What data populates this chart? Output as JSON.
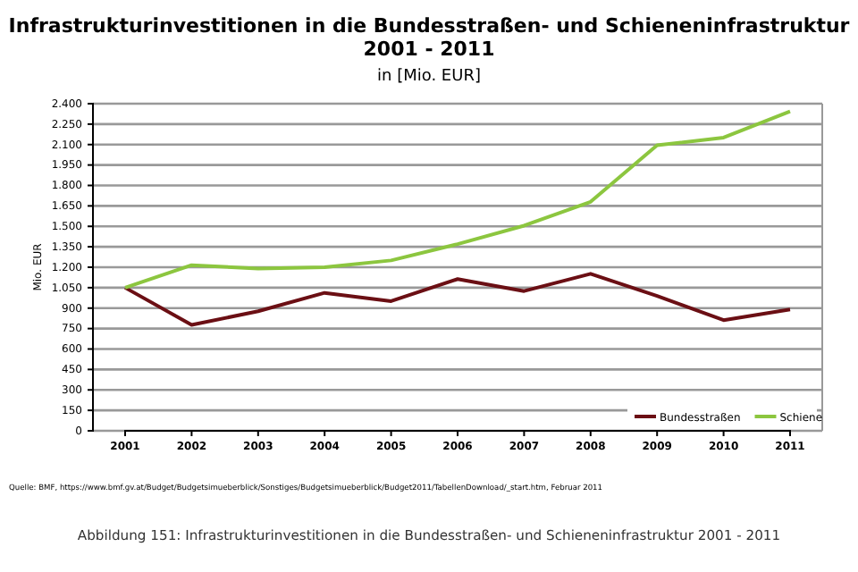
{
  "chart_data": {
    "type": "line",
    "title": "Infrastrukturinvestitionen in die Bundesstraßen- und Schieneninfrastruktur 2001 - 2011",
    "subtitle": "in [Mio. EUR]",
    "ylabel": "Mio. EUR",
    "categories": [
      "2001",
      "2002",
      "2003",
      "2004",
      "2005",
      "2006",
      "2007",
      "2008",
      "2009",
      "2010",
      "2011"
    ],
    "series": [
      {
        "name": "Bundesstraßen",
        "color": "#6b0f14",
        "values": [
          1050,
          777,
          877,
          1012,
          951,
          1113,
          1025,
          1152,
          990,
          812,
          890
        ]
      },
      {
        "name": "Schiene",
        "color": "#8cc63f",
        "values": [
          1050,
          1215,
          1190,
          1200,
          1250,
          1370,
          1505,
          1680,
          2095,
          2151,
          2343
        ]
      }
    ],
    "ylim": [
      0,
      2400
    ],
    "yticks": [
      0,
      {
        "value": 150,
        "label": "150"
      },
      {
        "value": 300,
        "label": "300"
      },
      {
        "value": 450,
        "label": "450"
      },
      {
        "value": 600,
        "label": "600"
      },
      {
        "value": 750,
        "label": "750"
      },
      {
        "value": 900,
        "label": "900"
      },
      {
        "value": 1050,
        "label": "1.050"
      },
      {
        "value": 1200,
        "label": "1.200"
      },
      {
        "value": 1350,
        "label": "1.350"
      },
      {
        "value": 1500,
        "label": "1.500"
      },
      {
        "value": 1650,
        "label": "1.650"
      },
      {
        "value": 1800,
        "label": "1.800"
      },
      {
        "value": 1950,
        "label": "1.950"
      },
      {
        "value": 2100,
        "label": "2.100"
      },
      {
        "value": 2250,
        "label": "2.250"
      },
      {
        "value": 2400,
        "label": "2.400"
      }
    ],
    "grid": "y",
    "legend": "bottom right",
    "marker": "none",
    "line_style": "solid",
    "annotations": [
      "Quelle: BMF, https://www.bmf.gv.at/Budget/Budgetsimueberblick/Sonstiges/Budgetsimueberblick/Budget2011/TabellenDownload/_start.htm, Februar 2011",
      "Abbildung 151: Infrastrukturinvestitionen in die Bundesstraßen- und Schieneninfrastruktur 2001 - 2011"
    ]
  }
}
